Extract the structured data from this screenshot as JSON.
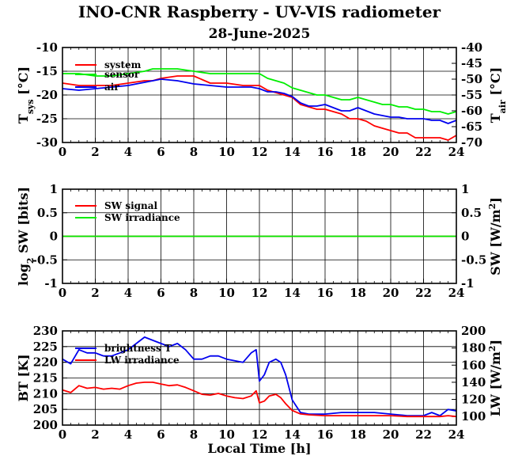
{
  "title": "INO-CNR Raspberry - UV-VIS radiometer",
  "subtitle": "28-June-2025",
  "xlabel": "Local Time [h]",
  "colors": {
    "red": "#ff0000",
    "green": "#00ee00",
    "blue": "#0000ee"
  },
  "chart_data": [
    {
      "type": "line",
      "panel": "temperature",
      "ylabel_left": "T_sys [°C]",
      "ylabel_left_main": "T",
      "ylabel_left_sub": "sys",
      "ylabel_left_unit": " [°C]",
      "ylabel_right": "T_air [°C]",
      "ylabel_right_main": "T",
      "ylabel_right_sub": "air",
      "ylabel_right_unit": " [°C]",
      "xlim": [
        0,
        24
      ],
      "ylim_left": [
        -30,
        -10
      ],
      "ylim_right": [
        -70,
        -40
      ],
      "xticks": [
        "0",
        "2",
        "4",
        "6",
        "8",
        "10",
        "12",
        "14",
        "16",
        "18",
        "20",
        "22",
        "24"
      ],
      "yticks_left": [
        "-10",
        "-15",
        "-20",
        "-25",
        "-30"
      ],
      "yticks_right": [
        "-40",
        "-45",
        "-50",
        "-55",
        "-60",
        "-65",
        "-70"
      ],
      "legend": [
        "system",
        "sensor",
        "air"
      ],
      "series": [
        {
          "name": "system",
          "color": "#ff0000",
          "axis": "left",
          "x": [
            0,
            1,
            2,
            3,
            4,
            5,
            5.5,
            6,
            7,
            8,
            9,
            10,
            11,
            11.5,
            12,
            12.5,
            13,
            13.5,
            14,
            14.5,
            15,
            15.5,
            16,
            16.5,
            17,
            17.5,
            18,
            18.5,
            19,
            19.5,
            20,
            20.5,
            21,
            21.5,
            22,
            22.5,
            23,
            23.5,
            24
          ],
          "y": [
            -17.5,
            -18,
            -18,
            -18,
            -17.5,
            -17,
            -17,
            -16.5,
            -16,
            -16,
            -17.5,
            -17.5,
            -18,
            -18,
            -18,
            -19,
            -19.5,
            -20,
            -20.5,
            -22,
            -22.5,
            -23,
            -23,
            -23.5,
            -24,
            -25,
            -25,
            -25.5,
            -26.5,
            -27,
            -27.5,
            -28,
            -28,
            -29,
            -29,
            -29,
            -29,
            -29.5,
            -28.5
          ]
        },
        {
          "name": "sensor",
          "color": "#00ee00",
          "axis": "left",
          "x": [
            0,
            1,
            2,
            3,
            4,
            5,
            5.5,
            6,
            7,
            8,
            9,
            10,
            11,
            11.5,
            12,
            12.5,
            13,
            13.5,
            14,
            14.5,
            15,
            15.5,
            16,
            16.5,
            17,
            17.5,
            18,
            18.5,
            19,
            19.5,
            20,
            20.5,
            21,
            21.5,
            22,
            22.5,
            23,
            23.5,
            24
          ],
          "y": [
            -15.5,
            -15.5,
            -16,
            -16,
            -15.5,
            -15,
            -14.5,
            -14.5,
            -14.5,
            -15,
            -15.5,
            -15.5,
            -15.5,
            -15.5,
            -15.5,
            -16.5,
            -17,
            -17.5,
            -18.5,
            -19,
            -19.5,
            -20,
            -20,
            -20.5,
            -21,
            -21,
            -20.5,
            -21,
            -21.5,
            -22,
            -22,
            -22.5,
            -22.5,
            -23,
            -23,
            -23.5,
            -23.5,
            -24,
            -23.5
          ]
        },
        {
          "name": "air",
          "color": "#0000ee",
          "axis": "right",
          "x": [
            0,
            1,
            2,
            3,
            4,
            5,
            5.5,
            6,
            7,
            8,
            9,
            10,
            11,
            11.5,
            12,
            12.5,
            13,
            13.5,
            14,
            14.5,
            15,
            15.5,
            16,
            16.5,
            17,
            17.5,
            18,
            18.5,
            19,
            19.5,
            20,
            20.5,
            21,
            21.5,
            22,
            22.5,
            23,
            23.5,
            24
          ],
          "y": [
            -53,
            -53.5,
            -53,
            -52.5,
            -52,
            -51,
            -50.5,
            -50,
            -50.5,
            -51.5,
            -52,
            -52.5,
            -52.5,
            -52.5,
            -53,
            -54,
            -54,
            -54.5,
            -55.5,
            -57.5,
            -58.5,
            -58.5,
            -58,
            -59,
            -60,
            -60,
            -59,
            -60,
            -61,
            -61.5,
            -62,
            -62,
            -62.5,
            -62.5,
            -62.5,
            -63,
            -63,
            -64,
            -63
          ]
        }
      ]
    },
    {
      "type": "line",
      "panel": "shortwave",
      "ylabel_left": "log2 SW [bits]",
      "ylabel_left_main": "log",
      "ylabel_left_sub": "2",
      "ylabel_left_unit": " SW [bits]",
      "ylabel_right": "SW [W/m2]",
      "ylabel_right_main": "SW [W/m",
      "ylabel_right_sup": "2",
      "ylabel_right_unit": "]",
      "xlim": [
        0,
        24
      ],
      "ylim_left": [
        -1,
        1
      ],
      "ylim_right": [
        -1,
        1
      ],
      "xticks": [
        "0",
        "2",
        "4",
        "6",
        "8",
        "10",
        "12",
        "14",
        "16",
        "18",
        "20",
        "22",
        "24"
      ],
      "yticks_left": [
        "1",
        "0.5",
        "0",
        "-0.5",
        "-1"
      ],
      "yticks_right": [
        "1",
        "0.5",
        "0",
        "-0.5",
        "-1"
      ],
      "legend": [
        "SW signal",
        "SW irradiance"
      ],
      "series": [
        {
          "name": "SW signal",
          "color": "#ff0000",
          "axis": "left",
          "x": [
            0,
            24
          ],
          "y": [
            0,
            0
          ]
        },
        {
          "name": "SW irradiance",
          "color": "#00ee00",
          "axis": "right",
          "x": [
            0,
            24
          ],
          "y": [
            0,
            0
          ]
        }
      ]
    },
    {
      "type": "line",
      "panel": "longwave",
      "ylabel_left": "BT [K]",
      "ylabel_right": "LW [W/m2]",
      "ylabel_right_main": "LW [W/m",
      "ylabel_right_sup": "2",
      "ylabel_right_unit": "]",
      "xlim": [
        0,
        24
      ],
      "ylim_left": [
        200,
        230
      ],
      "ylim_right": [
        90,
        200
      ],
      "xticks": [
        "0",
        "2",
        "4",
        "6",
        "8",
        "10",
        "12",
        "14",
        "16",
        "18",
        "20",
        "22",
        "24"
      ],
      "yticks_left": [
        "230",
        "225",
        "220",
        "215",
        "210",
        "205",
        "200"
      ],
      "yticks_right": [
        "200",
        "180",
        "160",
        "140",
        "120",
        "100"
      ],
      "legend": [
        "brightness T",
        "LW irradiance"
      ],
      "series": [
        {
          "name": "brightness T",
          "color": "#0000ee",
          "axis": "left",
          "x": [
            0,
            0.5,
            1,
            1.5,
            2,
            2.5,
            3,
            3.5,
            4,
            4.5,
            5,
            5.5,
            6,
            6.5,
            7,
            7.5,
            8,
            8.5,
            9,
            9.5,
            10,
            10.5,
            11,
            11.5,
            11.8,
            12,
            12.3,
            12.6,
            13,
            13.3,
            13.6,
            14,
            14.5,
            15,
            16,
            17,
            18,
            19,
            20,
            21,
            22,
            22.5,
            23,
            23.5,
            24
          ],
          "y": [
            221,
            219.5,
            224,
            223,
            223,
            222,
            222,
            223,
            224,
            226,
            228,
            227,
            226,
            225,
            226,
            224,
            221,
            221,
            222,
            222,
            221,
            220.5,
            220,
            223,
            224,
            214,
            216,
            220,
            221,
            220,
            216,
            208,
            204,
            203.5,
            203.5,
            204,
            204,
            204,
            203.5,
            203,
            203,
            204,
            203,
            205,
            204.5
          ]
        },
        {
          "name": "LW irradiance",
          "color": "#ff0000",
          "axis": "right",
          "x": [
            0,
            0.5,
            1,
            1.5,
            2,
            2.5,
            3,
            3.5,
            4,
            4.5,
            5,
            5.5,
            6,
            6.5,
            7,
            7.5,
            8,
            8.5,
            9,
            9.5,
            10,
            10.5,
            11,
            11.5,
            11.8,
            12,
            12.3,
            12.6,
            13,
            13.3,
            13.6,
            14,
            14.5,
            15,
            16,
            17,
            18,
            19,
            20,
            21,
            22,
            22.5,
            23,
            23.5,
            24
          ],
          "y": [
            131,
            128,
            136,
            133,
            134,
            132,
            133,
            132,
            136,
            139,
            140,
            140,
            138,
            136,
            137,
            134,
            130,
            126,
            125,
            127,
            124,
            122,
            121,
            124,
            130,
            116,
            118,
            124,
            126,
            122,
            115,
            107,
            103,
            102,
            101,
            101,
            101,
            101,
            101,
            100,
            100,
            100,
            100,
            101,
            100
          ]
        }
      ]
    }
  ]
}
